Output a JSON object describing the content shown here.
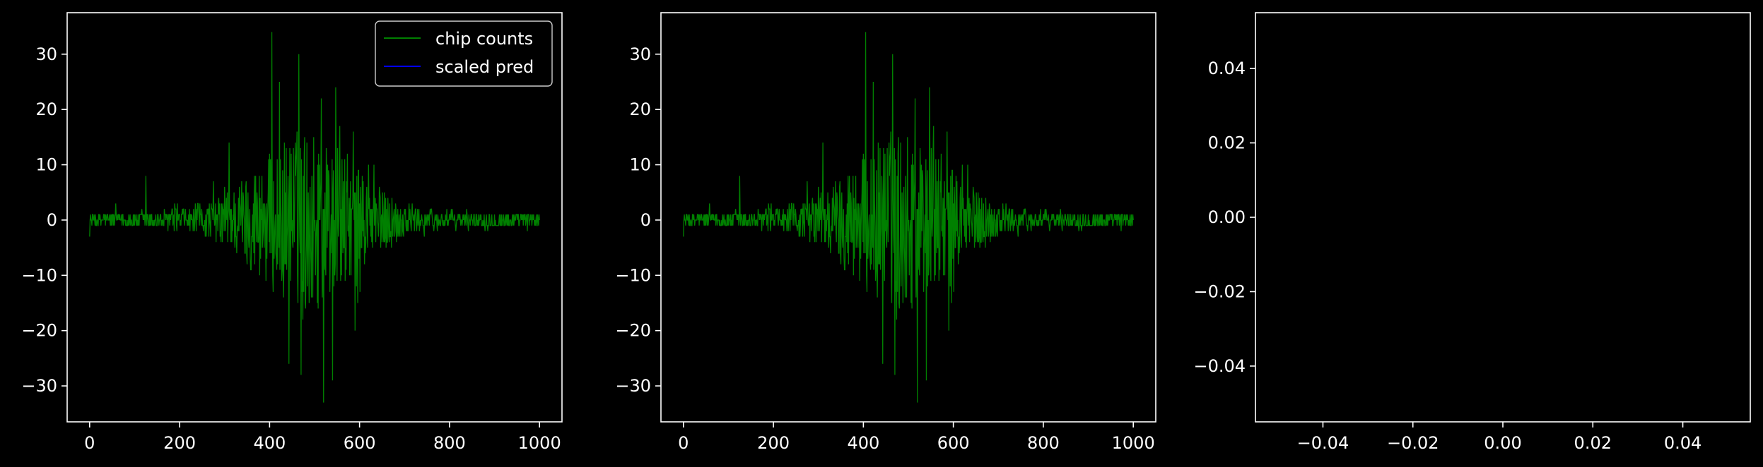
{
  "colors": {
    "background": "#000000",
    "axes": "#ffffff",
    "text": "#ffffff",
    "chip_counts": "#008000",
    "scaled_pred": "#0000ff"
  },
  "chart_data": [
    {
      "type": "line",
      "panel": "left",
      "title": "",
      "xlabel": "",
      "ylabel": "",
      "xlim": [
        -50,
        1050
      ],
      "ylim": [
        -36.5,
        37.5
      ],
      "xticks": [
        "0",
        "200",
        "400",
        "600",
        "800",
        "1000"
      ],
      "yticks": [
        "−30",
        "−20",
        "−10",
        "0",
        "10",
        "20",
        "30"
      ],
      "grid": false,
      "legend_position": "top-right",
      "legend": [
        {
          "label": "chip counts",
          "color": "#008000"
        },
        {
          "label": "scaled pred",
          "color": "#0000ff"
        }
      ],
      "series": [
        {
          "name": "chip counts",
          "color": "#008000",
          "x": [
            0,
            1000
          ],
          "samples": 1001,
          "envelope": {
            "center_x": 480,
            "spread_x": 150,
            "peak_positive": 34,
            "peak_negative": -33
          },
          "notable_spikes": [
            {
              "x": 125,
              "y": 8
            },
            {
              "x": 310,
              "y": 14
            },
            {
              "x": 405,
              "y": 34
            },
            {
              "x": 465,
              "y": 30
            },
            {
              "x": 515,
              "y": 22
            },
            {
              "x": 470,
              "y": -28
            },
            {
              "x": 520,
              "y": -33
            },
            {
              "x": 540,
              "y": -29
            },
            {
              "x": 590,
              "y": -20
            }
          ]
        },
        {
          "name": "scaled pred",
          "color": "#0000ff",
          "x": [],
          "y": []
        }
      ]
    },
    {
      "type": "line",
      "panel": "middle",
      "title": "",
      "xlabel": "",
      "ylabel": "",
      "xlim": [
        -50,
        1050
      ],
      "ylim": [
        -36.5,
        37.5
      ],
      "xticks": [
        "0",
        "200",
        "400",
        "600",
        "800",
        "1000"
      ],
      "yticks": [
        "−30",
        "−20",
        "−10",
        "0",
        "10",
        "20",
        "30"
      ],
      "grid": false,
      "legend_position": "none",
      "series": [
        {
          "name": "chip counts",
          "color": "#008000",
          "x": [
            0,
            1000
          ],
          "samples": 1001,
          "same_as_left": true
        }
      ]
    },
    {
      "type": "line",
      "panel": "right",
      "title": "",
      "xlabel": "",
      "ylabel": "",
      "xlim": [
        -0.055,
        0.055
      ],
      "ylim": [
        -0.055,
        0.055
      ],
      "xticks": [
        "−0.04",
        "−0.02",
        "0.00",
        "0.02",
        "0.04"
      ],
      "yticks": [
        "−0.04",
        "−0.02",
        "0.00",
        "0.02",
        "0.04"
      ],
      "grid": false,
      "legend_position": "none",
      "series": []
    }
  ]
}
